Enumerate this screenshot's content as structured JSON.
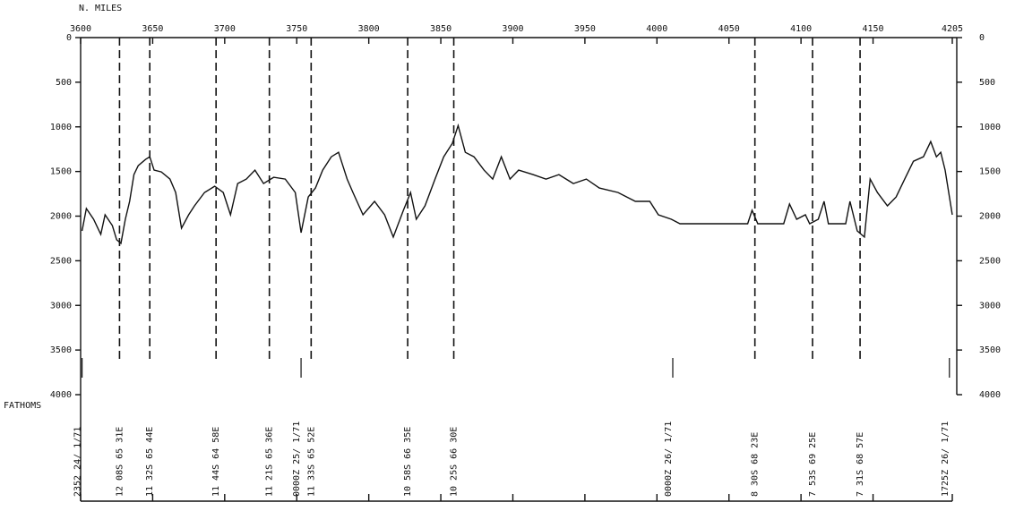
{
  "chart_data": {
    "type": "line",
    "x_label": "N. MILES",
    "y_label": "FATHOMS",
    "xlim": [
      3600,
      4205
    ],
    "xticks": [
      3600,
      3650,
      3700,
      3750,
      3800,
      3850,
      3900,
      3950,
      4000,
      4050,
      4100,
      4150,
      4205
    ],
    "ylim": [
      0,
      4000
    ],
    "yticks": [
      0,
      500,
      1000,
      1500,
      2000,
      2500,
      3000,
      3500,
      4000
    ],
    "y_inverted": true,
    "color": "#111111",
    "x": [
      3601,
      3604,
      3609,
      3614,
      3617,
      3622,
      3625,
      3628,
      3631,
      3634,
      3637,
      3640,
      3645,
      3648,
      3651,
      3656,
      3662,
      3666,
      3670,
      3675,
      3679,
      3686,
      3693,
      3699,
      3704,
      3709,
      3715,
      3721,
      3727,
      3734,
      3742,
      3749,
      3753,
      3758,
      3763,
      3768,
      3774,
      3779,
      3785,
      3789,
      3796,
      3804,
      3811,
      3817,
      3824,
      3829,
      3833,
      3839,
      3846,
      3852,
      3858,
      3862,
      3867,
      3873,
      3880,
      3886,
      3892,
      3898,
      3904,
      3914,
      3923,
      3932,
      3942,
      3951,
      3960,
      3973,
      3985,
      3995,
      4001,
      4010,
      4016,
      4041,
      4063,
      4066,
      4070,
      4088,
      4092,
      4097,
      4103,
      4106,
      4112,
      4116,
      4119,
      4131,
      4134,
      4139,
      4144,
      4148,
      4153,
      4160,
      4166,
      4172,
      4178,
      4185,
      4190,
      4194,
      4197,
      4200,
      4205
    ],
    "values": [
      2165,
      1915,
      2035,
      2205,
      1985,
      2105,
      2265,
      2305,
      2035,
      1835,
      1535,
      1435,
      1365,
      1335,
      1485,
      1505,
      1585,
      1735,
      2135,
      1985,
      1885,
      1735,
      1665,
      1735,
      1985,
      1635,
      1585,
      1485,
      1635,
      1565,
      1585,
      1735,
      2185,
      1785,
      1685,
      1485,
      1335,
      1285,
      1585,
      1735,
      1985,
      1835,
      1985,
      2235,
      1935,
      1735,
      2035,
      1885,
      1585,
      1335,
      1185,
      985,
      1285,
      1335,
      1485,
      1585,
      1335,
      1585,
      1485,
      1535,
      1585,
      1535,
      1635,
      1585,
      1685,
      1735,
      1835,
      1835,
      1985,
      2035,
      2085,
      2085,
      2085,
      1935,
      2085,
      2085,
      1865,
      2035,
      1985,
      2085,
      2035,
      1835,
      2085,
      2085,
      1835,
      2165,
      2235,
      1585,
      1735,
      1885,
      1785,
      1585,
      1385,
      1335,
      1165,
      1335,
      1285,
      1485,
      1985
    ],
    "positions": [
      {
        "x": 3627,
        "label": "12 08S 65 31E"
      },
      {
        "x": 3648,
        "label": "11 32S 65 44E"
      },
      {
        "x": 3694,
        "label": "11 44S 64 58E"
      },
      {
        "x": 3731,
        "label": "11 21S 65 36E"
      },
      {
        "x": 3760,
        "label": "11 33S 65 52E"
      },
      {
        "x": 3827,
        "label": "10 58S 66 35E"
      },
      {
        "x": 3859,
        "label": "10 25S 66 30E"
      },
      {
        "x": 4068,
        "label": "8 30S 68 23E"
      },
      {
        "x": 4108,
        "label": "7 53S 69 25E"
      },
      {
        "x": 4141,
        "label": "7 31S 68 57E"
      }
    ],
    "times": [
      {
        "x": 3601,
        "label": "2352 24/ 1/71"
      },
      {
        "x": 3753,
        "label": "0000Z 25/ 1/71"
      },
      {
        "x": 4011,
        "label": "0000Z 26/ 1/71"
      },
      {
        "x": 4203,
        "label": "1725Z 26/ 1/71"
      }
    ]
  }
}
